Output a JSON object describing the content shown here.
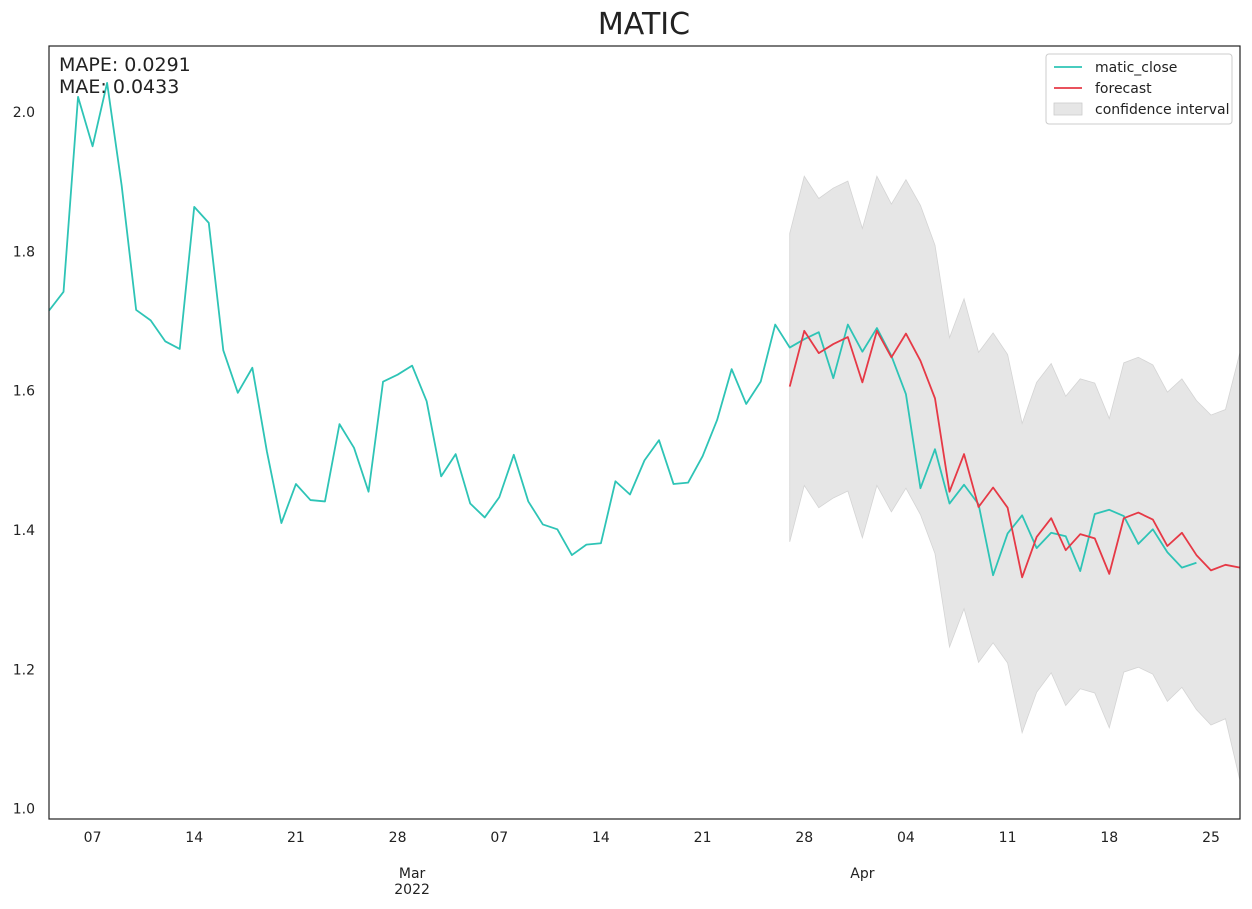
{
  "chart_data": {
    "type": "line",
    "title": "MATIC",
    "xlabel": "",
    "ylabel": "",
    "xlim": [
      "2022-02-04",
      "2022-04-27"
    ],
    "ylim": [
      0.985,
      2.095
    ],
    "grid": false,
    "legend_position": "top-right",
    "y_ticks": [
      1.0,
      1.2,
      1.4,
      1.6,
      1.8,
      2.0
    ],
    "y_tick_labels": [
      "1.0",
      "1.2",
      "1.4",
      "1.6",
      "1.8",
      "2.0"
    ],
    "x_ticks": [
      {
        "date": "2022-02-07",
        "label": "07"
      },
      {
        "date": "2022-02-14",
        "label": "14"
      },
      {
        "date": "2022-02-21",
        "label": "21"
      },
      {
        "date": "2022-02-28",
        "label": "28"
      },
      {
        "date": "2022-03-07",
        "label": "07"
      },
      {
        "date": "2022-03-14",
        "label": "14"
      },
      {
        "date": "2022-03-21",
        "label": "21"
      },
      {
        "date": "2022-03-28",
        "label": "28"
      },
      {
        "date": "2022-04-04",
        "label": "04"
      },
      {
        "date": "2022-04-11",
        "label": "11"
      },
      {
        "date": "2022-04-18",
        "label": "18"
      },
      {
        "date": "2022-04-25",
        "label": "25"
      }
    ],
    "month_labels": [
      {
        "date": "2022-03-01",
        "line1": "Mar",
        "line2": "2022"
      },
      {
        "date": "2022-04-01",
        "line1": "Apr",
        "line2": ""
      }
    ],
    "annotations": [
      "MAPE: 0.0291",
      "MAE: 0.0433"
    ],
    "series": [
      {
        "name": "matic_close",
        "color": "#2ec4b6",
        "start_date": "2022-02-04",
        "values": [
          1.715,
          1.742,
          2.022,
          1.951,
          2.042,
          1.895,
          1.716,
          1.701,
          1.671,
          1.66,
          1.864,
          1.841,
          1.658,
          1.597,
          1.633,
          1.513,
          1.41,
          1.466,
          1.443,
          1.441,
          1.552,
          1.518,
          1.455,
          1.613,
          1.623,
          1.636,
          1.585,
          1.477,
          1.509,
          1.438,
          1.418,
          1.447,
          1.508,
          1.441,
          1.408,
          1.401,
          1.364,
          1.379,
          1.381,
          1.47,
          1.451,
          1.5,
          1.529,
          1.466,
          1.468,
          1.506,
          1.558,
          1.631,
          1.581,
          1.613,
          1.695,
          1.662,
          1.674,
          1.684,
          1.618,
          1.695,
          1.656,
          1.69,
          1.65,
          1.595,
          1.46,
          1.516,
          1.438,
          1.465,
          1.437,
          1.335,
          1.395,
          1.421,
          1.374,
          1.396,
          1.391,
          1.341,
          1.423,
          1.429,
          1.42,
          1.38,
          1.401,
          1.368,
          1.346,
          1.353
        ]
      },
      {
        "name": "forecast",
        "color": "#e63946",
        "start_date": "2022-03-27",
        "values": [
          1.606,
          1.686,
          1.654,
          1.667,
          1.677,
          1.612,
          1.686,
          1.648,
          1.682,
          1.643,
          1.589,
          1.455,
          1.509,
          1.433,
          1.461,
          1.432,
          1.332,
          1.39,
          1.417,
          1.371,
          1.394,
          1.388,
          1.337,
          1.417,
          1.425,
          1.415,
          1.377,
          1.396,
          1.364,
          1.342,
          1.35,
          1.346
        ]
      }
    ],
    "confidence_interval": {
      "name": "confidence interval",
      "color": "#e6e6e6",
      "start_date": "2022-03-27",
      "upper": [
        1.826,
        1.908,
        1.876,
        1.891,
        1.901,
        1.833,
        1.908,
        1.868,
        1.903,
        1.866,
        1.809,
        1.676,
        1.732,
        1.655,
        1.683,
        1.652,
        1.553,
        1.612,
        1.639,
        1.592,
        1.617,
        1.611,
        1.56,
        1.64,
        1.648,
        1.637,
        1.598,
        1.617,
        1.586,
        1.565,
        1.573,
        1.655
      ],
      "lower": [
        1.383,
        1.464,
        1.432,
        1.446,
        1.456,
        1.389,
        1.464,
        1.426,
        1.46,
        1.422,
        1.366,
        1.232,
        1.287,
        1.21,
        1.238,
        1.209,
        1.109,
        1.167,
        1.195,
        1.148,
        1.172,
        1.166,
        1.116,
        1.196,
        1.203,
        1.193,
        1.154,
        1.174,
        1.142,
        1.12,
        1.129,
        1.04
      ]
    }
  }
}
